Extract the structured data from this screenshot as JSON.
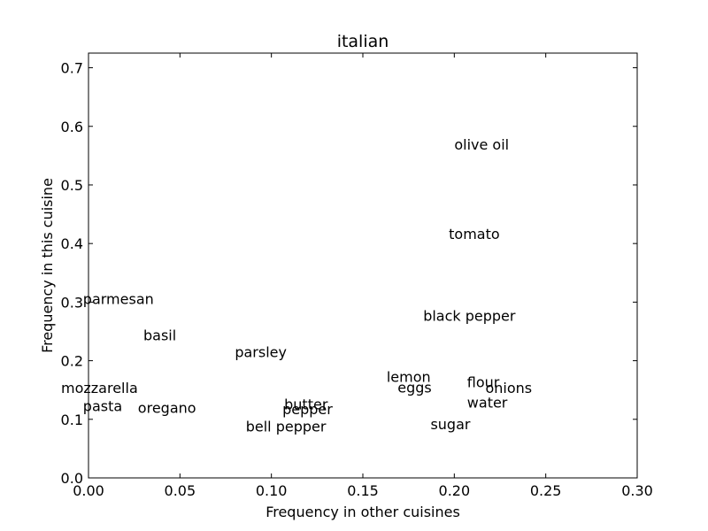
{
  "chart_data": {
    "type": "scatter",
    "title": "italian",
    "xlabel": "Frequency in other cuisines",
    "ylabel": "Frequency in this cuisine",
    "xlim": [
      0.0,
      0.3
    ],
    "ylim": [
      0.0,
      0.725
    ],
    "xticks": [
      0.0,
      0.05,
      0.1,
      0.15,
      0.2,
      0.25,
      0.3
    ],
    "xtick_labels": [
      "0.00",
      "0.05",
      "0.10",
      "0.15",
      "0.20",
      "0.25",
      "0.30"
    ],
    "yticks": [
      0.0,
      0.1,
      0.2,
      0.3,
      0.4,
      0.5,
      0.6,
      0.7
    ],
    "ytick_labels": [
      "0.0",
      "0.1",
      "0.2",
      "0.3",
      "0.4",
      "0.5",
      "0.6",
      "0.7"
    ],
    "grid": false,
    "points": [
      {
        "label": "olive oil",
        "x": 0.2,
        "y": 0.56
      },
      {
        "label": "tomato",
        "x": 0.197,
        "y": 0.408
      },
      {
        "label": "black pepper",
        "x": 0.183,
        "y": 0.268
      },
      {
        "label": "parmesan",
        "x": -0.003,
        "y": 0.297
      },
      {
        "label": "basil",
        "x": 0.03,
        "y": 0.235
      },
      {
        "label": "parsley",
        "x": 0.08,
        "y": 0.206
      },
      {
        "label": "lemon",
        "x": 0.163,
        "y": 0.164
      },
      {
        "label": "eggs",
        "x": 0.169,
        "y": 0.146
      },
      {
        "label": "flour",
        "x": 0.207,
        "y": 0.155
      },
      {
        "label": "onions",
        "x": 0.217,
        "y": 0.145
      },
      {
        "label": "water",
        "x": 0.207,
        "y": 0.12
      },
      {
        "label": "sugar",
        "x": 0.187,
        "y": 0.083
      },
      {
        "label": "mozzarella",
        "x": -0.015,
        "y": 0.145
      },
      {
        "label": "pasta",
        "x": -0.003,
        "y": 0.114
      },
      {
        "label": "oregano",
        "x": 0.027,
        "y": 0.111
      },
      {
        "label": "butter",
        "x": 0.107,
        "y": 0.117
      },
      {
        "label": "pepper",
        "x": 0.106,
        "y": 0.109
      },
      {
        "label": "bell pepper",
        "x": 0.086,
        "y": 0.079
      }
    ]
  }
}
